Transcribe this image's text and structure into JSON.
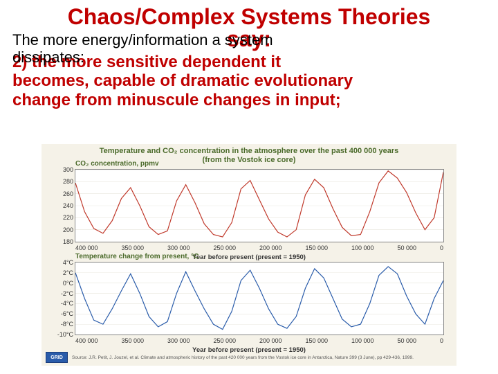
{
  "title_line1": "Chaos/Complex Systems Theories",
  "title_say": "say:",
  "subtitle_l1": "The more energy/information a system",
  "subtitle_l2": "dissipates:",
  "point2_l1": "2) the more sensitive dependent it",
  "point2_l2": "becomes, capable of dramatic evolutionary",
  "point2_l3": "change from minuscule changes in input;",
  "colors": {
    "accent": "#c00000",
    "chart_bg": "#f5f2e8",
    "panel_bg": "#ffffff",
    "title_green": "#4a6a2a",
    "co2_line": "#c0392b",
    "temp_line": "#2a5caa",
    "grid": "#d8d4c4"
  },
  "chart": {
    "main_title_l1": "Temperature and CO₂ concentration in the atmosphere over the past 400 000 years",
    "main_title_l2": "(from the Vostok ice core)",
    "x_categories": [
      "400 000",
      "350 000",
      "300 000",
      "250 000",
      "200 000",
      "150 000",
      "100 000",
      "50 000",
      "0"
    ],
    "x_axis_title": "Year before present (present = 1950)",
    "top": {
      "title": "CO₂ concentration, ppmv",
      "ylim": [
        180,
        300
      ],
      "yticks": [
        "300",
        "280",
        "260",
        "240",
        "220",
        "200",
        "180"
      ],
      "line_color": "#c0392b",
      "line_width": 1.2,
      "values": [
        278,
        230,
        202,
        194,
        215,
        252,
        270,
        240,
        205,
        192,
        198,
        248,
        275,
        245,
        210,
        192,
        188,
        212,
        268,
        282,
        250,
        218,
        196,
        188,
        200,
        258,
        284,
        270,
        235,
        204,
        190,
        192,
        230,
        278,
        298,
        286,
        262,
        228,
        200,
        220,
        296
      ]
    },
    "bot": {
      "title": "Temperature change from present, °C",
      "ylim": [
        -10,
        4
      ],
      "yticks": [
        "4°C",
        "2°C",
        "0°C",
        "-2°C",
        "-4°C",
        "-6°C",
        "-8°C",
        "-10°C"
      ],
      "line_color": "#2a5caa",
      "line_width": 1.2,
      "values": [
        2.0,
        -3.0,
        -7.2,
        -8.0,
        -5.0,
        -1.5,
        1.8,
        -2.0,
        -6.5,
        -8.5,
        -7.5,
        -2.0,
        2.2,
        -1.5,
        -5.0,
        -8.0,
        -9.0,
        -5.5,
        0.5,
        2.5,
        -1.0,
        -5.0,
        -8.0,
        -8.8,
        -6.5,
        -1.0,
        2.8,
        1.0,
        -3.0,
        -7.0,
        -8.5,
        -8.0,
        -4.0,
        1.5,
        3.2,
        1.8,
        -2.5,
        -6.0,
        -8.0,
        -3.0,
        0.5
      ]
    },
    "source": "Source: J.R. Petit, J. Jouzel, et al. Climate and atmospheric history of the past 420 000 years from the Vostok ice core in Antarctica, Nature 399 (3 June), pp 429-436, 1999."
  }
}
